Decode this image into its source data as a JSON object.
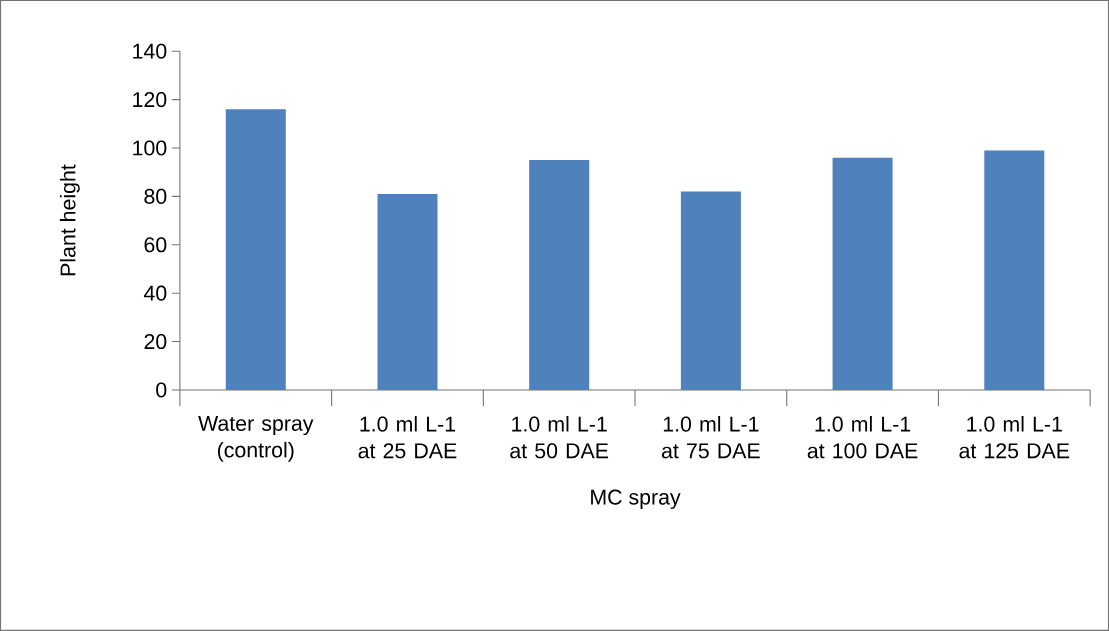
{
  "chart_data": {
    "type": "bar",
    "xlabel": "MC spray",
    "ylabel": "Plant height",
    "categories": [
      "Water spray (control)",
      "1.0 ml  L-1 at 25 DAE",
      "1.0 ml  L-1 at 50 DAE",
      "1.0 ml  L-1 at 75 DAE",
      "1.0 ml  L-1 at 100 DAE",
      "1.0 ml  L-1 at 125 DAE"
    ],
    "values": [
      116,
      81,
      95,
      82,
      96,
      99
    ],
    "color": "#4f81bd",
    "ylim": [
      0,
      140
    ],
    "yticks": [
      0,
      20,
      40,
      60,
      80,
      100,
      120,
      140
    ],
    "grid": false
  }
}
